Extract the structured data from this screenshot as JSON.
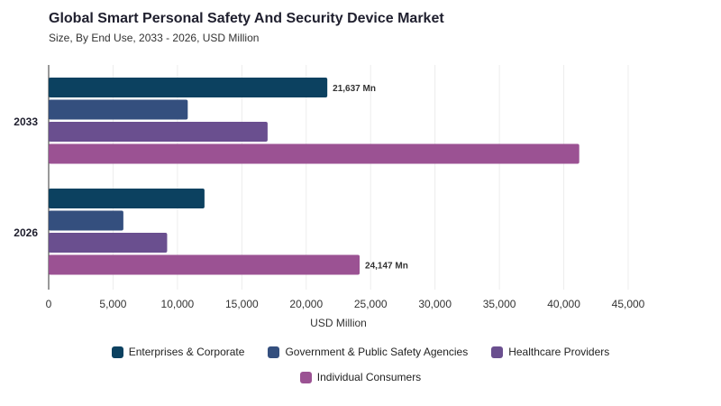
{
  "chart_data": {
    "type": "bar",
    "orientation": "horizontal",
    "title": "Global Smart Personal Safety And Security Device Market",
    "subtitle": "Size, By End Use, 2033 - 2026, USD Million",
    "xlabel": "USD Million",
    "ylabel": "",
    "categories": [
      "2033",
      "2026"
    ],
    "xlim": [
      0,
      45000
    ],
    "x_ticks": [
      "0",
      "5,000",
      "10,000",
      "15,000",
      "20,000",
      "25,000",
      "30,000",
      "35,000",
      "40,000",
      "45,000"
    ],
    "grid": true,
    "legend_position": "bottom",
    "series": [
      {
        "name": "Enterprises & Corporate",
        "color": "#0c4160",
        "values": [
          21637,
          12100
        ]
      },
      {
        "name": "Government & Public Safety Agencies",
        "color": "#344f7e",
        "values": [
          10800,
          5800
        ]
      },
      {
        "name": "Healthcare Providers",
        "color": "#6a4f8f",
        "values": [
          17000,
          9200
        ]
      },
      {
        "name": "Individual Consumers",
        "color": "#9b5293",
        "values": [
          41200,
          24147
        ]
      }
    ],
    "data_labels": [
      {
        "series": 0,
        "category": 0,
        "text": "21,637 Mn"
      },
      {
        "series": 3,
        "category": 1,
        "text": "24,147 Mn"
      }
    ]
  }
}
